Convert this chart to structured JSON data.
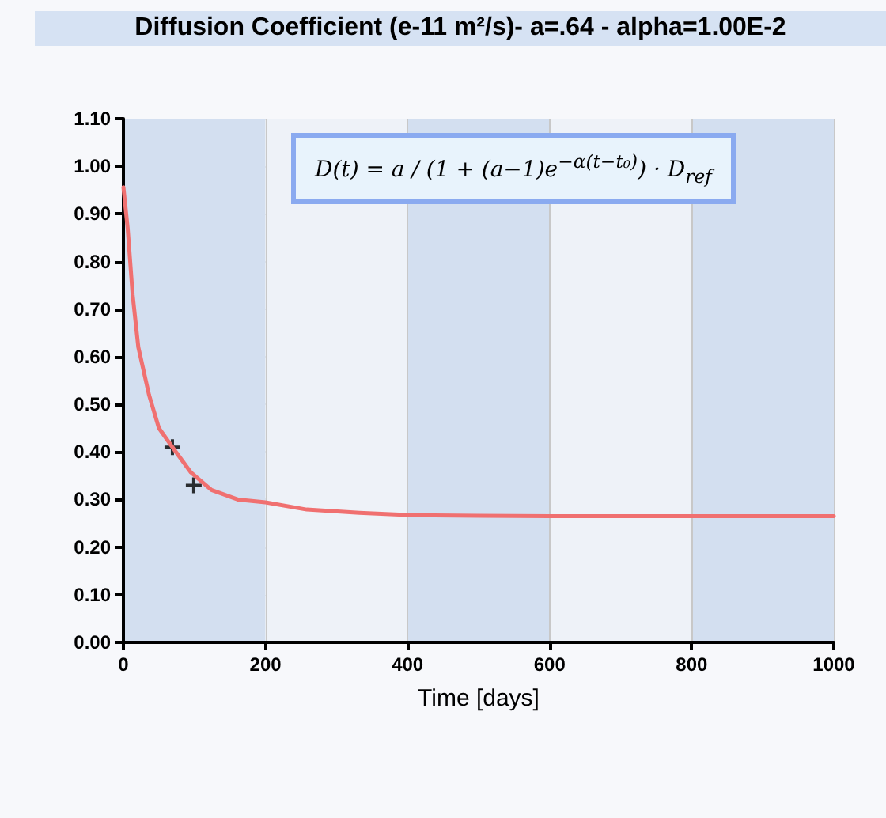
{
  "chart_data": {
    "type": "line",
    "title": "Diffusion Coefficient (e-11 m²/s)- a=.64 - alpha=1.00E-2",
    "xlabel": "Time [days]",
    "annotations": [
      "D(t) = a / (1 + (a−1)e$^{−α(t−t₀)}$) · D$_{ref}$"
    ],
    "series": [
      {
        "color": "#f07070",
        "marker": "none",
        "line_style": "solid",
        "x": [
          0,
          6,
          13,
          21,
          36,
          50,
          69,
          95,
          124,
          161,
          200,
          258,
          332,
          406,
          500,
          600,
          700,
          800,
          900,
          1000
        ],
        "values": [
          0.956,
          0.87,
          0.73,
          0.62,
          0.52,
          0.45,
          0.41,
          0.357,
          0.32,
          0.3,
          0.294,
          0.279,
          0.272,
          0.267,
          0.266,
          0.265,
          0.265,
          0.265,
          0.265,
          0.265
        ]
      },
      {
        "type": "scatter",
        "color": "#000000",
        "marker": "cross",
        "x": [
          69,
          99
        ],
        "values": [
          0.41,
          0.33
        ]
      }
    ],
    "xlim": [
      0,
      1000
    ],
    "xticks": [
      0,
      200,
      400,
      600,
      800,
      1000
    ],
    "ylim": [
      0,
      1.1
    ],
    "yticks": [
      {
        "value": 0,
        "label": "0.00"
      },
      {
        "value": 0.1,
        "label": "0.10"
      },
      {
        "value": 0.2,
        "label": "0.20"
      },
      {
        "value": 0.3,
        "label": "0.30"
      },
      {
        "value": 0.4,
        "label": "0.40"
      },
      {
        "value": 0.5,
        "label": "0.50"
      },
      {
        "value": 0.6,
        "label": "0.60"
      },
      {
        "value": 0.7,
        "label": "0.70"
      },
      {
        "value": 0.8,
        "label": "0.80"
      },
      {
        "value": 0.9,
        "label": "0.90"
      },
      {
        "value": 1.0,
        "label": "1.00"
      },
      {
        "value": 1.1,
        "label": "1.10"
      }
    ],
    "grid": true
  }
}
